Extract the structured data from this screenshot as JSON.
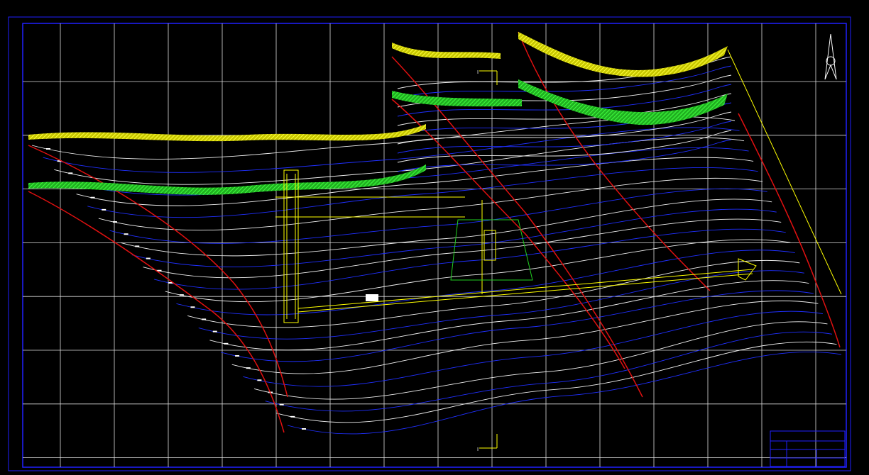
{
  "section_marks": [
    {
      "label": "I"
    },
    {
      "label": "I"
    }
  ]
}
